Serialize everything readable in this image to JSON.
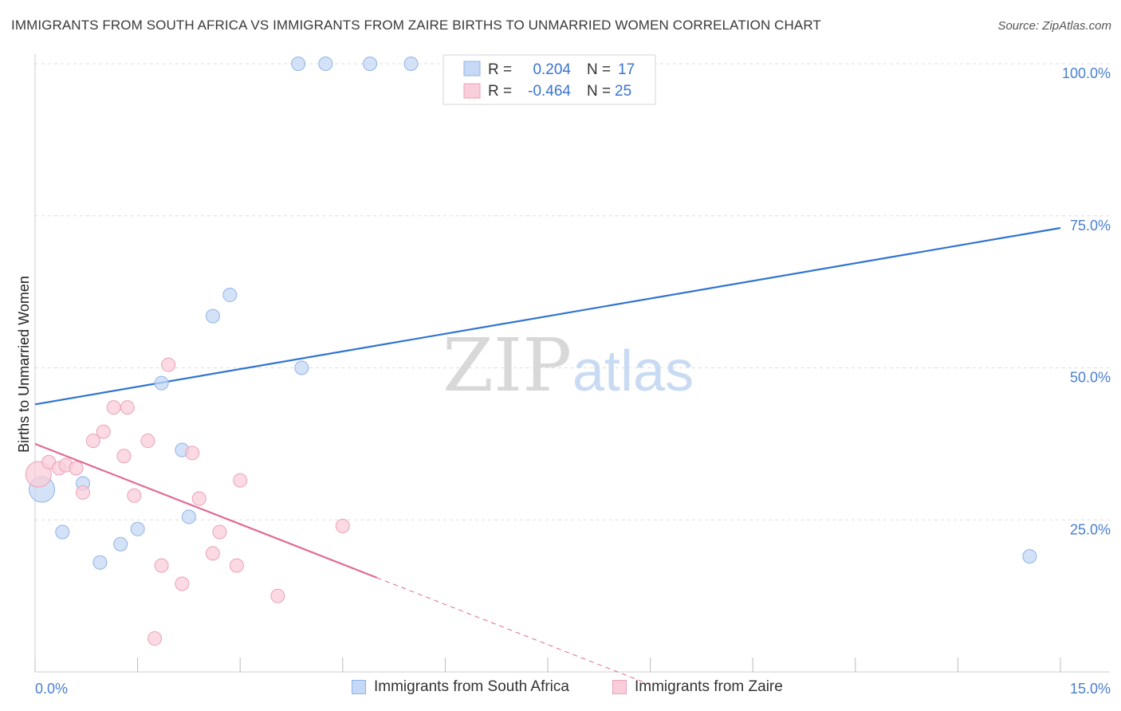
{
  "header": {
    "title": "IMMIGRANTS FROM SOUTH AFRICA VS IMMIGRANTS FROM ZAIRE BIRTHS TO UNMARRIED WOMEN CORRELATION CHART",
    "source": "Source: ZipAtlas.com"
  },
  "watermark": {
    "zip": "ZIP",
    "atlas": "atlas"
  },
  "legend": {
    "r_label": "R =",
    "n_label": "N =",
    "series1": {
      "r": "0.204",
      "n": "17"
    },
    "series2": {
      "r": "-0.464",
      "n": "25"
    }
  },
  "bottom_legend": {
    "series1": "Immigrants from South Africa",
    "series2": "Immigrants from Zaire"
  },
  "colors": {
    "blue_fill": "#c5d8f5",
    "blue_stroke": "#8fb3e8",
    "blue_line": "#2f74d0",
    "pink_fill": "#f9cdd9",
    "pink_stroke": "#eba1b7",
    "pink_line": "#e06a95",
    "tick_color": "#4a7fcf",
    "grid": "#dddddd"
  },
  "chart_data": {
    "type": "scatter",
    "title": "IMMIGRANTS FROM SOUTH AFRICA VS IMMIGRANTS FROM ZAIRE BIRTHS TO UNMARRIED WOMEN CORRELATION CHART",
    "xlabel": "",
    "ylabel": "Births to Unmarried Women",
    "xlim": [
      0,
      15
    ],
    "ylim": [
      0,
      100
    ],
    "x_tick_labels": [
      "0.0%",
      "15.0%"
    ],
    "y_ticks": [
      25,
      50,
      75,
      100
    ],
    "y_tick_labels": [
      "25.0%",
      "50.0%",
      "75.0%",
      "100.0%"
    ],
    "grid": true,
    "legend_position": "top-center",
    "series": [
      {
        "name": "Immigrants from South Africa",
        "color": "#c5d8f5",
        "points": [
          {
            "x": 0.1,
            "y": 30.0,
            "big": true
          },
          {
            "x": 0.4,
            "y": 23.0
          },
          {
            "x": 0.7,
            "y": 31.0
          },
          {
            "x": 0.95,
            "y": 18.0
          },
          {
            "x": 1.25,
            "y": 21.0
          },
          {
            "x": 1.5,
            "y": 23.5
          },
          {
            "x": 1.85,
            "y": 47.5
          },
          {
            "x": 2.15,
            "y": 36.5
          },
          {
            "x": 2.25,
            "y": 25.5
          },
          {
            "x": 2.6,
            "y": 58.5
          },
          {
            "x": 2.85,
            "y": 62.0
          },
          {
            "x": 3.85,
            "y": 100.0
          },
          {
            "x": 4.25,
            "y": 100.0
          },
          {
            "x": 4.9,
            "y": 100.0
          },
          {
            "x": 3.9,
            "y": 50.0
          },
          {
            "x": 5.5,
            "y": 100.0
          },
          {
            "x": 14.55,
            "y": 19.0
          }
        ],
        "trend": {
          "x0": 0,
          "y0": 44.0,
          "x1": 15,
          "y1": 73.0
        }
      },
      {
        "name": "Immigrants from Zaire",
        "color": "#f9cdd9",
        "points": [
          {
            "x": 0.05,
            "y": 32.5,
            "big": true
          },
          {
            "x": 0.2,
            "y": 34.5
          },
          {
            "x": 0.35,
            "y": 33.5
          },
          {
            "x": 0.45,
            "y": 34.0
          },
          {
            "x": 0.6,
            "y": 33.5
          },
          {
            "x": 0.7,
            "y": 29.5
          },
          {
            "x": 0.85,
            "y": 38.0
          },
          {
            "x": 1.0,
            "y": 39.5
          },
          {
            "x": 1.15,
            "y": 43.5
          },
          {
            "x": 1.3,
            "y": 35.5
          },
          {
            "x": 1.35,
            "y": 43.5
          },
          {
            "x": 1.45,
            "y": 29.0
          },
          {
            "x": 1.65,
            "y": 38.0
          },
          {
            "x": 1.75,
            "y": 5.5
          },
          {
            "x": 1.85,
            "y": 17.5
          },
          {
            "x": 1.95,
            "y": 50.5
          },
          {
            "x": 2.15,
            "y": 14.5
          },
          {
            "x": 2.3,
            "y": 36.0
          },
          {
            "x": 2.4,
            "y": 28.5
          },
          {
            "x": 2.6,
            "y": 19.5
          },
          {
            "x": 2.7,
            "y": 23.0
          },
          {
            "x": 2.95,
            "y": 17.5
          },
          {
            "x": 3.0,
            "y": 31.5
          },
          {
            "x": 3.55,
            "y": 12.5
          },
          {
            "x": 4.5,
            "y": 24.0
          }
        ],
        "trend": {
          "x0": 0,
          "y0": 37.5,
          "x1": 5,
          "y1": 15.5,
          "dash_to_x": 9.0
        }
      }
    ]
  }
}
